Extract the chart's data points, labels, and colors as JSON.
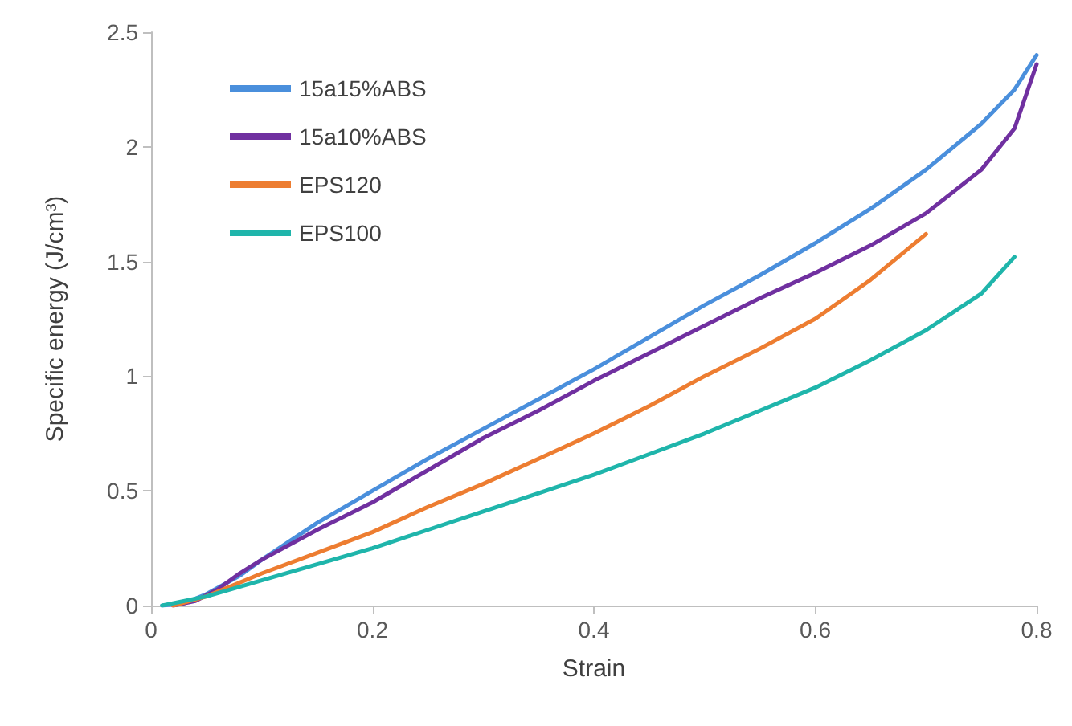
{
  "chart_data": {
    "type": "line",
    "xlabel": "Strain",
    "ylabel": "Specific energy (J/cm³)",
    "xlim": [
      0,
      0.8
    ],
    "ylim": [
      0,
      2.5
    ],
    "xticks": [
      0,
      0.2,
      0.4,
      0.6,
      0.8
    ],
    "yticks": [
      0,
      0.5,
      1,
      1.5,
      2,
      2.5
    ],
    "grid": false,
    "legend": "top left",
    "marker": "none",
    "line_style": "solid",
    "series": [
      {
        "name": "15a15%ABS",
        "color": "#4a8fdc",
        "x": [
          0.01,
          0.03,
          0.05,
          0.08,
          0.1,
          0.15,
          0.2,
          0.25,
          0.3,
          0.35,
          0.4,
          0.45,
          0.5,
          0.55,
          0.6,
          0.65,
          0.7,
          0.75,
          0.78,
          0.8
        ],
        "values": [
          0,
          0.01,
          0.05,
          0.13,
          0.2,
          0.36,
          0.5,
          0.64,
          0.77,
          0.9,
          1.03,
          1.17,
          1.31,
          1.44,
          1.58,
          1.73,
          1.9,
          2.1,
          2.25,
          2.4
        ]
      },
      {
        "name": "15a10%ABS",
        "color": "#7030a0",
        "x": [
          0.02,
          0.04,
          0.06,
          0.08,
          0.1,
          0.15,
          0.2,
          0.25,
          0.3,
          0.35,
          0.4,
          0.45,
          0.5,
          0.55,
          0.6,
          0.65,
          0.7,
          0.75,
          0.78,
          0.8
        ],
        "values": [
          0,
          0.02,
          0.07,
          0.14,
          0.2,
          0.33,
          0.45,
          0.59,
          0.73,
          0.85,
          0.98,
          1.1,
          1.22,
          1.34,
          1.45,
          1.57,
          1.71,
          1.9,
          2.08,
          2.36
        ]
      },
      {
        "name": "EPS120",
        "color": "#ed7d31",
        "x": [
          0.02,
          0.05,
          0.1,
          0.15,
          0.2,
          0.25,
          0.3,
          0.35,
          0.4,
          0.45,
          0.5,
          0.55,
          0.6,
          0.65,
          0.7
        ],
        "values": [
          0,
          0.04,
          0.14,
          0.23,
          0.32,
          0.43,
          0.53,
          0.64,
          0.75,
          0.87,
          1,
          1.12,
          1.25,
          1.42,
          1.62
        ]
      },
      {
        "name": "EPS100",
        "color": "#1fb5ab",
        "x": [
          0.01,
          0.05,
          0.1,
          0.15,
          0.2,
          0.25,
          0.3,
          0.35,
          0.4,
          0.45,
          0.5,
          0.55,
          0.6,
          0.65,
          0.7,
          0.75,
          0.78
        ],
        "values": [
          0,
          0.04,
          0.11,
          0.18,
          0.25,
          0.33,
          0.41,
          0.49,
          0.57,
          0.66,
          0.75,
          0.85,
          0.95,
          1.07,
          1.2,
          1.36,
          1.52
        ]
      }
    ]
  }
}
